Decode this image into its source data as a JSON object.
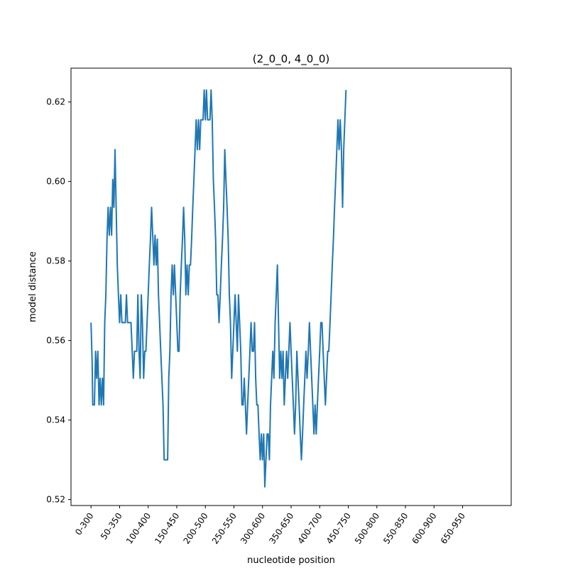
{
  "chart_data": {
    "type": "line",
    "title": "(2_0_0, 4_0_0)",
    "xlabel": "nucleotide position",
    "ylabel": "model distance",
    "xlim": [
      -35,
      735
    ],
    "ylim": [
      0.5185,
      0.6285
    ],
    "grid": false,
    "legend": null,
    "y_ticks": [
      0.52,
      0.54,
      0.56,
      0.58,
      0.6,
      0.62
    ],
    "y_tick_labels": [
      "0.52",
      "0.54",
      "0.56",
      "0.58",
      "0.60",
      "0.62"
    ],
    "x_ticks": [
      0,
      50,
      100,
      150,
      200,
      250,
      300,
      350,
      400,
      450,
      500,
      550,
      600,
      650
    ],
    "x_tick_labels": [
      "0-300",
      "50-350",
      "100-400",
      "150-450",
      "200-500",
      "250-550",
      "300-600",
      "350-650",
      "400-700",
      "450-750",
      "500-800",
      "550-850",
      "600-900",
      "650-950"
    ],
    "series": [
      {
        "color": "#1f77b4",
        "points": [
          [
            0,
            0.5645
          ],
          [
            2,
            0.5545
          ],
          [
            3,
            0.5438
          ],
          [
            6,
            0.5438
          ],
          [
            8,
            0.5573
          ],
          [
            10,
            0.5505
          ],
          [
            12,
            0.5573
          ],
          [
            14,
            0.5438
          ],
          [
            16,
            0.5505
          ],
          [
            18,
            0.5438
          ],
          [
            20,
            0.5505
          ],
          [
            22,
            0.5438
          ],
          [
            24,
            0.5645
          ],
          [
            26,
            0.5715
          ],
          [
            28,
            0.5855
          ],
          [
            30,
            0.5935
          ],
          [
            32,
            0.5865
          ],
          [
            34,
            0.5935
          ],
          [
            36,
            0.5865
          ],
          [
            38,
            0.6005
          ],
          [
            40,
            0.5935
          ],
          [
            42,
            0.608
          ],
          [
            44,
            0.5935
          ],
          [
            46,
            0.579
          ],
          [
            48,
            0.5715
          ],
          [
            50,
            0.5645
          ],
          [
            52,
            0.5715
          ],
          [
            54,
            0.5645
          ],
          [
            60,
            0.5645
          ],
          [
            62,
            0.5715
          ],
          [
            64,
            0.5645
          ],
          [
            70,
            0.5645
          ],
          [
            72,
            0.5573
          ],
          [
            74,
            0.5505
          ],
          [
            76,
            0.5573
          ],
          [
            80,
            0.5573
          ],
          [
            82,
            0.5715
          ],
          [
            84,
            0.5573
          ],
          [
            86,
            0.5505
          ],
          [
            88,
            0.5715
          ],
          [
            90,
            0.5645
          ],
          [
            92,
            0.5505
          ],
          [
            94,
            0.5573
          ],
          [
            96,
            0.5573
          ],
          [
            98,
            0.5645
          ],
          [
            100,
            0.5715
          ],
          [
            102,
            0.579
          ],
          [
            104,
            0.5855
          ],
          [
            106,
            0.5935
          ],
          [
            108,
            0.5865
          ],
          [
            110,
            0.579
          ],
          [
            112,
            0.5865
          ],
          [
            114,
            0.579
          ],
          [
            116,
            0.5855
          ],
          [
            118,
            0.5715
          ],
          [
            120,
            0.5645
          ],
          [
            122,
            0.5573
          ],
          [
            124,
            0.5505
          ],
          [
            126,
            0.5438
          ],
          [
            128,
            0.53
          ],
          [
            134,
            0.53
          ],
          [
            136,
            0.5505
          ],
          [
            138,
            0.5573
          ],
          [
            140,
            0.5715
          ],
          [
            142,
            0.579
          ],
          [
            144,
            0.5715
          ],
          [
            146,
            0.579
          ],
          [
            148,
            0.5715
          ],
          [
            150,
            0.5645
          ],
          [
            152,
            0.5573
          ],
          [
            154,
            0.5573
          ],
          [
            156,
            0.5715
          ],
          [
            158,
            0.579
          ],
          [
            160,
            0.5855
          ],
          [
            162,
            0.5935
          ],
          [
            164,
            0.5855
          ],
          [
            166,
            0.5715
          ],
          [
            168,
            0.579
          ],
          [
            170,
            0.5715
          ],
          [
            172,
            0.579
          ],
          [
            174,
            0.579
          ],
          [
            176,
            0.5855
          ],
          [
            178,
            0.5935
          ],
          [
            180,
            0.6005
          ],
          [
            182,
            0.608
          ],
          [
            184,
            0.6155
          ],
          [
            186,
            0.608
          ],
          [
            188,
            0.6155
          ],
          [
            190,
            0.608
          ],
          [
            192,
            0.6155
          ],
          [
            196,
            0.6155
          ],
          [
            198,
            0.623
          ],
          [
            200,
            0.6155
          ],
          [
            202,
            0.623
          ],
          [
            204,
            0.6155
          ],
          [
            206,
            0.6155
          ],
          [
            208,
            0.6155
          ],
          [
            210,
            0.623
          ],
          [
            212,
            0.6155
          ],
          [
            214,
            0.6005
          ],
          [
            216,
            0.5935
          ],
          [
            218,
            0.5855
          ],
          [
            220,
            0.5715
          ],
          [
            222,
            0.5715
          ],
          [
            224,
            0.5645
          ],
          [
            226,
            0.5715
          ],
          [
            228,
            0.579
          ],
          [
            230,
            0.5855
          ],
          [
            232,
            0.5935
          ],
          [
            234,
            0.608
          ],
          [
            236,
            0.6005
          ],
          [
            238,
            0.5935
          ],
          [
            240,
            0.5855
          ],
          [
            242,
            0.5715
          ],
          [
            244,
            0.5645
          ],
          [
            246,
            0.5505
          ],
          [
            248,
            0.5573
          ],
          [
            250,
            0.5645
          ],
          [
            252,
            0.5715
          ],
          [
            254,
            0.5645
          ],
          [
            256,
            0.5573
          ],
          [
            258,
            0.5715
          ],
          [
            260,
            0.5645
          ],
          [
            262,
            0.5573
          ],
          [
            264,
            0.5438
          ],
          [
            266,
            0.5438
          ],
          [
            268,
            0.5505
          ],
          [
            270,
            0.5438
          ],
          [
            272,
            0.5365
          ],
          [
            274,
            0.5438
          ],
          [
            276,
            0.5505
          ],
          [
            278,
            0.5573
          ],
          [
            280,
            0.5645
          ],
          [
            282,
            0.5573
          ],
          [
            284,
            0.5573
          ],
          [
            286,
            0.5645
          ],
          [
            288,
            0.5505
          ],
          [
            290,
            0.5438
          ],
          [
            292,
            0.5438
          ],
          [
            294,
            0.5365
          ],
          [
            296,
            0.53
          ],
          [
            298,
            0.5365
          ],
          [
            300,
            0.53
          ],
          [
            302,
            0.5365
          ],
          [
            304,
            0.5232
          ],
          [
            306,
            0.53
          ],
          [
            308,
            0.5365
          ],
          [
            310,
            0.5365
          ],
          [
            312,
            0.53
          ],
          [
            314,
            0.5438
          ],
          [
            316,
            0.5505
          ],
          [
            318,
            0.5573
          ],
          [
            320,
            0.5505
          ],
          [
            322,
            0.5645
          ],
          [
            324,
            0.5715
          ],
          [
            326,
            0.579
          ],
          [
            328,
            0.5645
          ],
          [
            330,
            0.5505
          ],
          [
            332,
            0.5573
          ],
          [
            334,
            0.5505
          ],
          [
            336,
            0.5573
          ],
          [
            338,
            0.5438
          ],
          [
            340,
            0.5505
          ],
          [
            342,
            0.5573
          ],
          [
            344,
            0.5505
          ],
          [
            346,
            0.5573
          ],
          [
            348,
            0.5645
          ],
          [
            350,
            0.5573
          ],
          [
            352,
            0.5505
          ],
          [
            354,
            0.5438
          ],
          [
            356,
            0.5365
          ],
          [
            358,
            0.5438
          ],
          [
            360,
            0.5573
          ],
          [
            362,
            0.5505
          ],
          [
            364,
            0.5438
          ],
          [
            366,
            0.5365
          ],
          [
            368,
            0.53
          ],
          [
            370,
            0.5365
          ],
          [
            372,
            0.5438
          ],
          [
            374,
            0.5505
          ],
          [
            376,
            0.5573
          ],
          [
            378,
            0.5505
          ],
          [
            380,
            0.5573
          ],
          [
            382,
            0.5645
          ],
          [
            384,
            0.5573
          ],
          [
            386,
            0.5505
          ],
          [
            388,
            0.5438
          ],
          [
            390,
            0.5365
          ],
          [
            392,
            0.5438
          ],
          [
            394,
            0.5365
          ],
          [
            396,
            0.5438
          ],
          [
            398,
            0.5505
          ],
          [
            400,
            0.5573
          ],
          [
            402,
            0.5645
          ],
          [
            404,
            0.5645
          ],
          [
            406,
            0.5573
          ],
          [
            408,
            0.5505
          ],
          [
            410,
            0.5438
          ],
          [
            412,
            0.5505
          ],
          [
            414,
            0.5573
          ],
          [
            416,
            0.5573
          ],
          [
            418,
            0.5645
          ],
          [
            420,
            0.5715
          ],
          [
            422,
            0.579
          ],
          [
            424,
            0.5855
          ],
          [
            426,
            0.5935
          ],
          [
            428,
            0.6005
          ],
          [
            430,
            0.608
          ],
          [
            432,
            0.6155
          ],
          [
            434,
            0.608
          ],
          [
            436,
            0.6155
          ],
          [
            438,
            0.608
          ],
          [
            440,
            0.5935
          ],
          [
            442,
            0.608
          ],
          [
            444,
            0.6155
          ],
          [
            446,
            0.623
          ]
        ]
      }
    ]
  }
}
